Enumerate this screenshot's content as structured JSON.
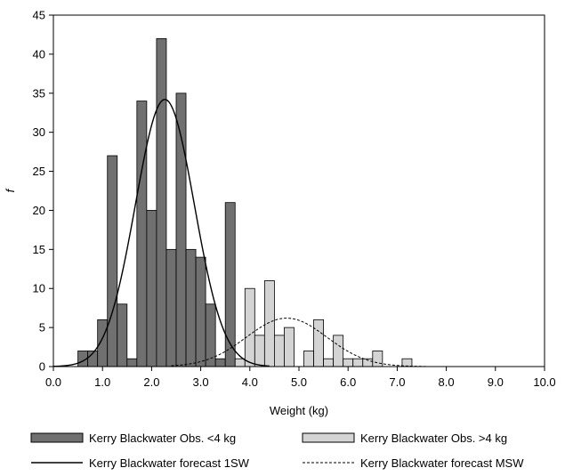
{
  "chart_data": {
    "type": "bar",
    "xlabel": "Weight (kg)",
    "ylabel": "f",
    "xlim": [
      0,
      10
    ],
    "ylim": [
      0,
      45
    ],
    "bin_width": 0.2,
    "x_ticks": [
      "0.0",
      "1.0",
      "2.0",
      "3.0",
      "4.0",
      "5.0",
      "6.0",
      "7.0",
      "8.0",
      "9.0",
      "10.0"
    ],
    "y_ticks": [
      "0",
      "5",
      "10",
      "15",
      "20",
      "25",
      "30",
      "35",
      "40",
      "45"
    ],
    "grid": false,
    "legend_position": "bottom",
    "series": [
      {
        "name": "Kerry Blackwater Obs. <4 kg",
        "kind": "bar",
        "color": "#707070",
        "x": [
          0.6,
          0.8,
          1.0,
          1.2,
          1.4,
          1.6,
          1.8,
          2.0,
          2.2,
          2.4,
          2.6,
          2.8,
          3.0,
          3.2,
          3.4,
          3.6,
          3.8
        ],
        "values": [
          2,
          2,
          6,
          27,
          8,
          1,
          34,
          20,
          42,
          15,
          35,
          15,
          14,
          8,
          1,
          21,
          0
        ]
      },
      {
        "name": "Kerry Blackwater Obs. >4 kg",
        "kind": "bar",
        "color": "#d4d4d4",
        "x": [
          3.8,
          4.0,
          4.2,
          4.4,
          4.6,
          4.8,
          5.0,
          5.2,
          5.4,
          5.6,
          5.8,
          6.0,
          6.2,
          6.4,
          6.6,
          6.8,
          7.0,
          7.2
        ],
        "values": [
          1,
          10,
          4,
          11,
          4,
          5,
          0,
          2,
          6,
          1,
          4,
          1,
          1,
          1,
          2,
          0,
          0,
          1
        ]
      },
      {
        "name": "Kerry Blackwater forecast 1SW",
        "kind": "line",
        "style": "solid",
        "distribution": "normal",
        "peak": 34.2,
        "mean": 2.27,
        "sd": 0.6
      },
      {
        "name": "Kerry Blackwater forecast MSW",
        "kind": "line",
        "style": "dashed",
        "distribution": "normal",
        "peak": 6.2,
        "mean": 4.75,
        "sd": 0.82
      }
    ]
  }
}
